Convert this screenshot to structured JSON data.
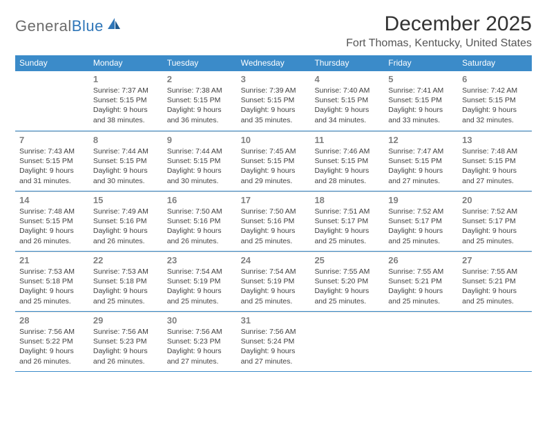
{
  "brand": {
    "name_gray": "General",
    "name_blue": "Blue"
  },
  "title": "December 2025",
  "location": "Fort Thomas, Kentucky, United States",
  "colors": {
    "header_bg": "#3b8bc9",
    "header_text": "#ffffff",
    "week_rule": "#3b8bc9",
    "cell_rule": "#d9d9d9",
    "daynum": "#808080",
    "body_text": "#404040",
    "logo_gray": "#6b6b6b",
    "logo_blue": "#2f76b8",
    "background": "#ffffff"
  },
  "fonts": {
    "family": "Arial",
    "title_size_pt": 22,
    "location_size_pt": 12,
    "dow_size_pt": 9,
    "daynum_size_pt": 10,
    "body_size_pt": 8
  },
  "dow": [
    "Sunday",
    "Monday",
    "Tuesday",
    "Wednesday",
    "Thursday",
    "Friday",
    "Saturday"
  ],
  "weeks": [
    [
      null,
      {
        "d": "1",
        "sr": "7:37 AM",
        "ss": "5:15 PM",
        "dl": "9 hours and 38 minutes."
      },
      {
        "d": "2",
        "sr": "7:38 AM",
        "ss": "5:15 PM",
        "dl": "9 hours and 36 minutes."
      },
      {
        "d": "3",
        "sr": "7:39 AM",
        "ss": "5:15 PM",
        "dl": "9 hours and 35 minutes."
      },
      {
        "d": "4",
        "sr": "7:40 AM",
        "ss": "5:15 PM",
        "dl": "9 hours and 34 minutes."
      },
      {
        "d": "5",
        "sr": "7:41 AM",
        "ss": "5:15 PM",
        "dl": "9 hours and 33 minutes."
      },
      {
        "d": "6",
        "sr": "7:42 AM",
        "ss": "5:15 PM",
        "dl": "9 hours and 32 minutes."
      }
    ],
    [
      {
        "d": "7",
        "sr": "7:43 AM",
        "ss": "5:15 PM",
        "dl": "9 hours and 31 minutes."
      },
      {
        "d": "8",
        "sr": "7:44 AM",
        "ss": "5:15 PM",
        "dl": "9 hours and 30 minutes."
      },
      {
        "d": "9",
        "sr": "7:44 AM",
        "ss": "5:15 PM",
        "dl": "9 hours and 30 minutes."
      },
      {
        "d": "10",
        "sr": "7:45 AM",
        "ss": "5:15 PM",
        "dl": "9 hours and 29 minutes."
      },
      {
        "d": "11",
        "sr": "7:46 AM",
        "ss": "5:15 PM",
        "dl": "9 hours and 28 minutes."
      },
      {
        "d": "12",
        "sr": "7:47 AM",
        "ss": "5:15 PM",
        "dl": "9 hours and 27 minutes."
      },
      {
        "d": "13",
        "sr": "7:48 AM",
        "ss": "5:15 PM",
        "dl": "9 hours and 27 minutes."
      }
    ],
    [
      {
        "d": "14",
        "sr": "7:48 AM",
        "ss": "5:15 PM",
        "dl": "9 hours and 26 minutes."
      },
      {
        "d": "15",
        "sr": "7:49 AM",
        "ss": "5:16 PM",
        "dl": "9 hours and 26 minutes."
      },
      {
        "d": "16",
        "sr": "7:50 AM",
        "ss": "5:16 PM",
        "dl": "9 hours and 26 minutes."
      },
      {
        "d": "17",
        "sr": "7:50 AM",
        "ss": "5:16 PM",
        "dl": "9 hours and 25 minutes."
      },
      {
        "d": "18",
        "sr": "7:51 AM",
        "ss": "5:17 PM",
        "dl": "9 hours and 25 minutes."
      },
      {
        "d": "19",
        "sr": "7:52 AM",
        "ss": "5:17 PM",
        "dl": "9 hours and 25 minutes."
      },
      {
        "d": "20",
        "sr": "7:52 AM",
        "ss": "5:17 PM",
        "dl": "9 hours and 25 minutes."
      }
    ],
    [
      {
        "d": "21",
        "sr": "7:53 AM",
        "ss": "5:18 PM",
        "dl": "9 hours and 25 minutes."
      },
      {
        "d": "22",
        "sr": "7:53 AM",
        "ss": "5:18 PM",
        "dl": "9 hours and 25 minutes."
      },
      {
        "d": "23",
        "sr": "7:54 AM",
        "ss": "5:19 PM",
        "dl": "9 hours and 25 minutes."
      },
      {
        "d": "24",
        "sr": "7:54 AM",
        "ss": "5:19 PM",
        "dl": "9 hours and 25 minutes."
      },
      {
        "d": "25",
        "sr": "7:55 AM",
        "ss": "5:20 PM",
        "dl": "9 hours and 25 minutes."
      },
      {
        "d": "26",
        "sr": "7:55 AM",
        "ss": "5:21 PM",
        "dl": "9 hours and 25 minutes."
      },
      {
        "d": "27",
        "sr": "7:55 AM",
        "ss": "5:21 PM",
        "dl": "9 hours and 25 minutes."
      }
    ],
    [
      {
        "d": "28",
        "sr": "7:56 AM",
        "ss": "5:22 PM",
        "dl": "9 hours and 26 minutes."
      },
      {
        "d": "29",
        "sr": "7:56 AM",
        "ss": "5:23 PM",
        "dl": "9 hours and 26 minutes."
      },
      {
        "d": "30",
        "sr": "7:56 AM",
        "ss": "5:23 PM",
        "dl": "9 hours and 27 minutes."
      },
      {
        "d": "31",
        "sr": "7:56 AM",
        "ss": "5:24 PM",
        "dl": "9 hours and 27 minutes."
      },
      null,
      null,
      null
    ]
  ],
  "labels": {
    "sunrise": "Sunrise:",
    "sunset": "Sunset:",
    "daylight": "Daylight:"
  }
}
